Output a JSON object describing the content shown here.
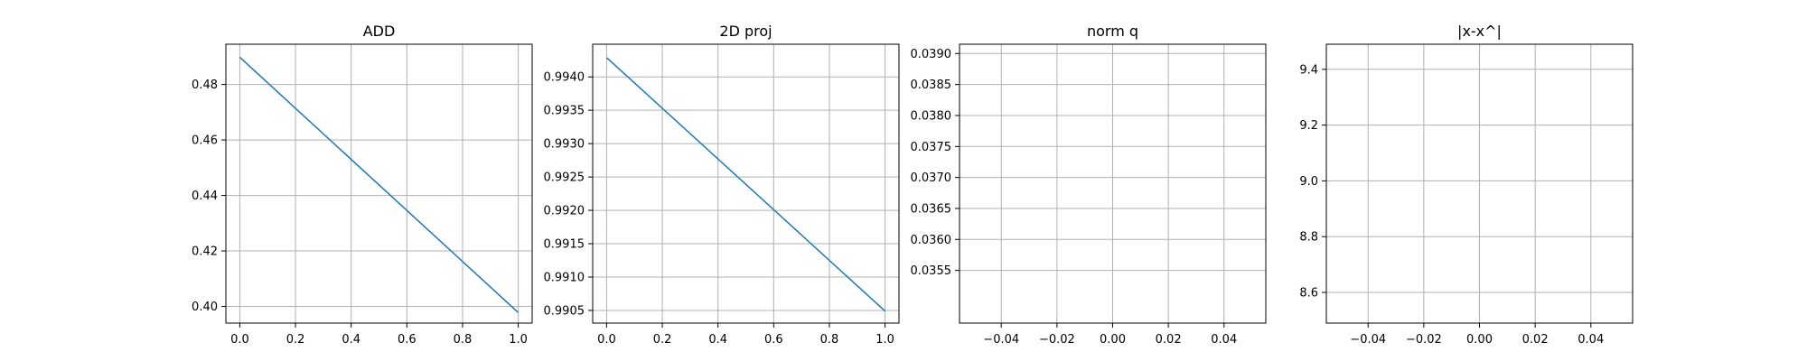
{
  "chart_data": [
    {
      "type": "line",
      "title": "ADD",
      "grid": true,
      "xlim": [
        -0.05,
        1.05
      ],
      "ylim": [
        0.394,
        0.4945
      ],
      "xticks": [
        0.0,
        0.2,
        0.4,
        0.6,
        0.8,
        1.0
      ],
      "xtick_labels": [
        "0.0",
        "0.2",
        "0.4",
        "0.6",
        "0.8",
        "1.0"
      ],
      "yticks": [
        0.4,
        0.42,
        0.44,
        0.46,
        0.48
      ],
      "ytick_labels": [
        "0.40",
        "0.42",
        "0.44",
        "0.46",
        "0.48"
      ],
      "series": [
        {
          "x": [
            0.0,
            1.0
          ],
          "y": [
            0.4898,
            0.3978
          ],
          "color": "#1f77b4"
        }
      ]
    },
    {
      "type": "line",
      "title": "2D proj",
      "grid": true,
      "xlim": [
        -0.05,
        1.05
      ],
      "ylim": [
        0.99031,
        0.99449
      ],
      "xticks": [
        0.0,
        0.2,
        0.4,
        0.6,
        0.8,
        1.0
      ],
      "xtick_labels": [
        "0.0",
        "0.2",
        "0.4",
        "0.6",
        "0.8",
        "1.0"
      ],
      "yticks": [
        0.9905,
        0.991,
        0.9915,
        0.992,
        0.9925,
        0.993,
        0.9935,
        0.994
      ],
      "ytick_labels": [
        "0.9905",
        "0.9910",
        "0.9915",
        "0.9920",
        "0.9925",
        "0.9930",
        "0.9935",
        "0.9940"
      ],
      "series": [
        {
          "x": [
            0.0,
            1.0
          ],
          "y": [
            0.99429,
            0.99049
          ],
          "color": "#1f77b4"
        }
      ]
    },
    {
      "type": "line",
      "title": "norm q",
      "grid": true,
      "xlim": [
        -0.055,
        0.055
      ],
      "ylim": [
        0.03465,
        0.03915
      ],
      "xticks": [
        -0.04,
        -0.02,
        0.0,
        0.02,
        0.04
      ],
      "xtick_labels": [
        "−0.04",
        "−0.02",
        "0.00",
        "0.02",
        "0.04"
      ],
      "yticks": [
        0.0355,
        0.036,
        0.0365,
        0.037,
        0.0375,
        0.038,
        0.0385,
        0.039
      ],
      "ytick_labels": [
        "0.0355",
        "0.0360",
        "0.0365",
        "0.0370",
        "0.0375",
        "0.0380",
        "0.0385",
        "0.0390"
      ],
      "series": []
    },
    {
      "type": "line",
      "title": "|x-x^|",
      "grid": true,
      "xlim": [
        -0.055,
        0.055
      ],
      "ylim": [
        8.49,
        9.49
      ],
      "xticks": [
        -0.04,
        -0.02,
        0.0,
        0.02,
        0.04
      ],
      "xtick_labels": [
        "−0.04",
        "−0.02",
        "0.00",
        "0.02",
        "0.04"
      ],
      "yticks": [
        8.6,
        8.8,
        9.0,
        9.2,
        9.4
      ],
      "ytick_labels": [
        "8.6",
        "8.8",
        "9.0",
        "9.2",
        "9.4"
      ],
      "series": []
    }
  ]
}
